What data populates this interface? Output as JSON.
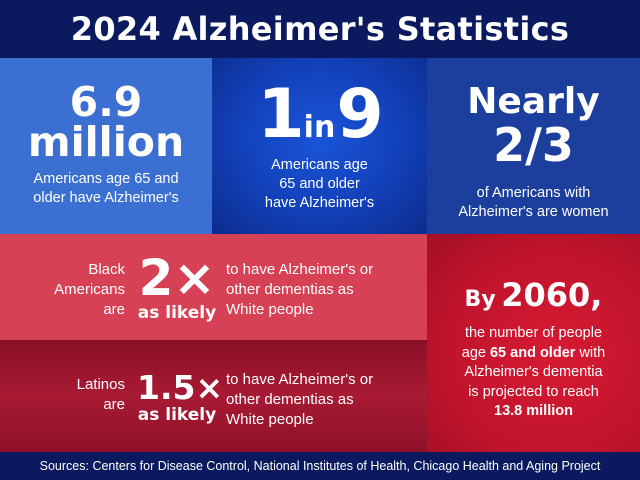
{
  "title": "2024 Alzheimer's Statistics",
  "stat_total": {
    "number": "6.9",
    "unit": "million",
    "line1": "Americans age 65 and",
    "line2": "older have Alzheimer's"
  },
  "stat_ratio": {
    "left": "1",
    "mid": "in",
    "right": "9",
    "line1": "Americans age",
    "line2": "65 and older",
    "line3": "have Alzheimer's"
  },
  "stat_women": {
    "line1": "Nearly",
    "line2": "2/3",
    "sub1": "of Americans with",
    "sub2": "Alzheimer's are women"
  },
  "black_americans": {
    "who1": "Black",
    "who2": "Americans",
    "who3": "are",
    "multiplier": "2×",
    "likely": "as likely",
    "desc1": "to have Alzheimer's or",
    "desc2": "other dementias as",
    "desc3": "White people"
  },
  "latinos": {
    "who1": "Latinos",
    "who2": "are",
    "multiplier": "1.5×",
    "likely": "as likely",
    "desc1": "to have Alzheimer's or",
    "desc2": "other dementias as",
    "desc3": "White people"
  },
  "projection": {
    "by": "By",
    "year": "2060,",
    "line1": "the number of people",
    "line2_pre": "age",
    "line2_bold": "65 and older",
    "line2_post": "with",
    "line3": "Alzheimer's dementia",
    "line4": "is projected to reach",
    "line5": "13.8 million"
  },
  "footer": "Sources: Centers for Disease Control, National Institutes of Health, Chicago Health and Aging Project",
  "colors": {
    "navy": "#0b1a5e",
    "blue_light": "#3b6fd1",
    "blue_bright": "#1a55d8",
    "blue_mid": "#1c3e9c",
    "pink_red": "#d64155",
    "dark_red": "#a81a33",
    "red": "#d71a33"
  }
}
